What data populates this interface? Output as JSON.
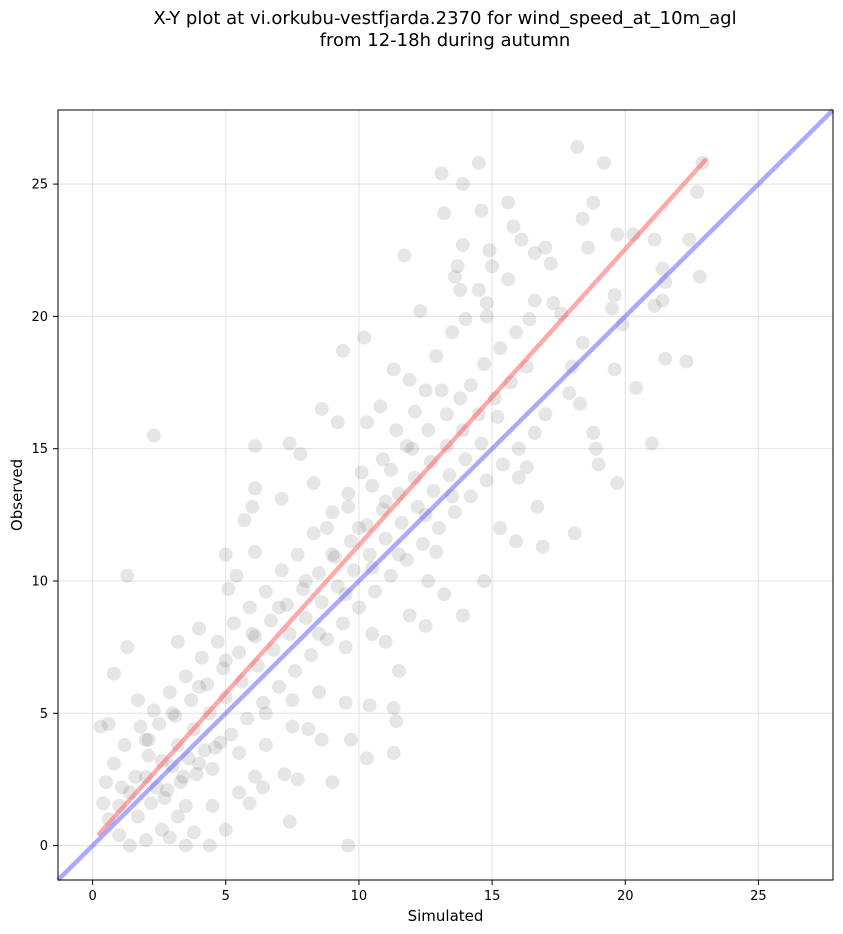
{
  "chart_data": {
    "type": "scatter",
    "title_line1": "X-Y plot at vi.orkubu-vestfjarda.2370 for wind_speed_at_10m_agl",
    "title_line2": "from 12-18h during autumn",
    "xlabel": "Simulated",
    "ylabel": "Observed",
    "xlim": [
      -1.3,
      27.8
    ],
    "ylim": [
      -1.3,
      27.8
    ],
    "xticks": [
      0,
      5,
      10,
      15,
      20,
      25
    ],
    "yticks": [
      0,
      5,
      10,
      15,
      20,
      25
    ],
    "grid": true,
    "point_color": "#404040",
    "point_opacity": 0.13,
    "regression_line": {
      "color": "#ff5555",
      "opacity": 0.5,
      "x": [
        0.25,
        23.0
      ],
      "y": [
        0.45,
        25.9
      ]
    },
    "identity_line": {
      "color": "#5555ff",
      "opacity": 0.5,
      "x": [
        -1.3,
        27.8
      ],
      "y": [
        -1.3,
        27.8
      ]
    },
    "points": [
      [
        22.9,
        25.8
      ],
      [
        18.2,
        26.4
      ],
      [
        14.5,
        25.8
      ],
      [
        13.9,
        25.0
      ],
      [
        13.1,
        25.4
      ],
      [
        19.2,
        25.8
      ],
      [
        22.7,
        24.7
      ],
      [
        18.8,
        24.3
      ],
      [
        15.6,
        24.3
      ],
      [
        14.6,
        24.0
      ],
      [
        13.2,
        23.9
      ],
      [
        19.7,
        23.1
      ],
      [
        18.4,
        23.7
      ],
      [
        20.3,
        23.1
      ],
      [
        22.4,
        22.9
      ],
      [
        21.1,
        22.9
      ],
      [
        16.6,
        22.4
      ],
      [
        17.2,
        22.0
      ],
      [
        15.8,
        23.4
      ],
      [
        16.1,
        22.9
      ],
      [
        17.0,
        22.6
      ],
      [
        11.7,
        22.3
      ],
      [
        14.9,
        22.5
      ],
      [
        15.0,
        21.9
      ],
      [
        15.6,
        21.4
      ],
      [
        13.9,
        22.7
      ],
      [
        13.7,
        21.9
      ],
      [
        13.6,
        21.5
      ],
      [
        14.5,
        21.0
      ],
      [
        21.4,
        21.8
      ],
      [
        21.5,
        21.3
      ],
      [
        22.8,
        21.5
      ],
      [
        18.6,
        22.6
      ],
      [
        13.8,
        21.0
      ],
      [
        14.8,
        20.5
      ],
      [
        16.6,
        20.6
      ],
      [
        17.3,
        20.5
      ],
      [
        17.6,
        20.1
      ],
      [
        19.6,
        20.8
      ],
      [
        19.5,
        20.3
      ],
      [
        21.4,
        20.6
      ],
      [
        21.1,
        20.4
      ],
      [
        19.9,
        19.7
      ],
      [
        18.4,
        19.0
      ],
      [
        18.0,
        18.1
      ],
      [
        17.9,
        17.1
      ],
      [
        19.6,
        18.0
      ],
      [
        20.4,
        17.3
      ],
      [
        21.5,
        18.4
      ],
      [
        22.3,
        18.3
      ],
      [
        18.3,
        16.7
      ],
      [
        18.8,
        15.6
      ],
      [
        18.9,
        15.0
      ],
      [
        19.0,
        14.4
      ],
      [
        19.7,
        13.7
      ],
      [
        21.0,
        15.2
      ],
      [
        17.0,
        16.3
      ],
      [
        16.3,
        14.3
      ],
      [
        16.0,
        13.9
      ],
      [
        16.7,
        12.8
      ],
      [
        18.1,
        11.8
      ],
      [
        16.9,
        11.3
      ],
      [
        15.9,
        11.5
      ],
      [
        15.3,
        12.0
      ],
      [
        14.7,
        10.0
      ],
      [
        13.9,
        8.7
      ],
      [
        13.2,
        9.5
      ],
      [
        12.6,
        10.0
      ],
      [
        12.9,
        11.1
      ],
      [
        12.5,
        8.3
      ],
      [
        11.9,
        8.7
      ],
      [
        11.0,
        7.7
      ],
      [
        11.5,
        6.6
      ],
      [
        11.3,
        5.2
      ],
      [
        10.4,
        5.3
      ],
      [
        11.4,
        4.7
      ],
      [
        11.3,
        3.5
      ],
      [
        10.3,
        3.3
      ],
      [
        9.7,
        4.0
      ],
      [
        9.5,
        5.4
      ],
      [
        8.6,
        4.0
      ],
      [
        8.1,
        4.4
      ],
      [
        7.2,
        2.7
      ],
      [
        6.1,
        2.6
      ],
      [
        5.9,
        1.6
      ],
      [
        6.4,
        2.2
      ],
      [
        7.7,
        2.5
      ],
      [
        7.4,
        0.9
      ],
      [
        9.0,
        2.4
      ],
      [
        9.6,
        0.0
      ],
      [
        2.3,
        15.5
      ],
      [
        1.3,
        10.2
      ],
      [
        1.3,
        7.5
      ],
      [
        0.8,
        6.5
      ],
      [
        0.3,
        4.5
      ],
      [
        0.6,
        4.6
      ],
      [
        1.7,
        5.5
      ],
      [
        2.1,
        4.0
      ],
      [
        3.2,
        7.7
      ],
      [
        4.0,
        8.2
      ],
      [
        5.1,
        9.7
      ],
      [
        5.4,
        10.2
      ],
      [
        5.0,
        11.0
      ],
      [
        6.1,
        11.1
      ],
      [
        5.7,
        12.3
      ],
      [
        6.0,
        12.8
      ],
      [
        6.1,
        13.5
      ],
      [
        7.1,
        13.1
      ],
      [
        6.1,
        15.1
      ],
      [
        7.4,
        15.2
      ],
      [
        9.4,
        18.7
      ],
      [
        10.2,
        19.2
      ],
      [
        11.3,
        18.0
      ],
      [
        11.9,
        17.6
      ],
      [
        12.5,
        17.2
      ],
      [
        12.3,
        20.2
      ],
      [
        10.8,
        16.6
      ],
      [
        10.3,
        16.0
      ],
      [
        9.2,
        16.0
      ],
      [
        8.6,
        16.5
      ],
      [
        7.8,
        14.8
      ],
      [
        8.3,
        13.7
      ],
      [
        8.8,
        12.0
      ],
      [
        9.6,
        12.8
      ],
      [
        10.5,
        13.6
      ],
      [
        11.2,
        14.2
      ],
      [
        11.8,
        15.1
      ],
      [
        12.6,
        15.7
      ],
      [
        13.3,
        16.3
      ],
      [
        13.8,
        16.9
      ],
      [
        14.2,
        17.4
      ],
      [
        14.7,
        18.2
      ],
      [
        15.3,
        18.8
      ],
      [
        15.9,
        19.4
      ],
      [
        16.4,
        19.9
      ],
      [
        12.9,
        18.5
      ],
      [
        13.5,
        19.4
      ],
      [
        14.0,
        19.9
      ],
      [
        14.8,
        20.0
      ],
      [
        13.1,
        17.2
      ],
      [
        12.1,
        16.4
      ],
      [
        11.4,
        15.7
      ],
      [
        10.9,
        14.6
      ],
      [
        10.1,
        14.1
      ],
      [
        9.6,
        13.3
      ],
      [
        9.0,
        12.6
      ],
      [
        8.3,
        11.8
      ],
      [
        7.7,
        11.0
      ],
      [
        7.1,
        10.4
      ],
      [
        6.5,
        9.6
      ],
      [
        5.9,
        9.0
      ],
      [
        5.3,
        8.4
      ],
      [
        4.7,
        7.7
      ],
      [
        4.1,
        7.1
      ],
      [
        3.5,
        6.4
      ],
      [
        2.9,
        5.8
      ],
      [
        2.3,
        5.1
      ],
      [
        1.8,
        4.5
      ],
      [
        1.2,
        3.8
      ],
      [
        0.8,
        3.1
      ],
      [
        0.5,
        2.4
      ],
      [
        0.4,
        1.6
      ],
      [
        0.6,
        1.0
      ],
      [
        1.0,
        0.4
      ],
      [
        1.4,
        0.0
      ],
      [
        2.0,
        0.2
      ],
      [
        2.6,
        0.6
      ],
      [
        3.2,
        1.1
      ],
      [
        3.8,
        0.5
      ],
      [
        4.4,
        0.0
      ],
      [
        5.0,
        0.6
      ],
      [
        3.5,
        0.0
      ],
      [
        2.9,
        0.3
      ],
      [
        1.7,
        1.1
      ],
      [
        2.2,
        1.6
      ],
      [
        2.8,
        2.1
      ],
      [
        3.4,
        2.6
      ],
      [
        4.0,
        3.1
      ],
      [
        4.6,
        3.7
      ],
      [
        5.2,
        4.2
      ],
      [
        5.8,
        4.8
      ],
      [
        6.4,
        5.4
      ],
      [
        7.0,
        6.0
      ],
      [
        7.6,
        6.6
      ],
      [
        8.2,
        7.2
      ],
      [
        8.8,
        7.8
      ],
      [
        9.4,
        8.4
      ],
      [
        10.0,
        9.0
      ],
      [
        10.6,
        9.6
      ],
      [
        11.2,
        10.2
      ],
      [
        11.8,
        10.8
      ],
      [
        12.4,
        11.4
      ],
      [
        13.0,
        12.0
      ],
      [
        13.6,
        12.6
      ],
      [
        14.2,
        13.2
      ],
      [
        14.8,
        13.8
      ],
      [
        15.4,
        14.4
      ],
      [
        16.0,
        15.0
      ],
      [
        16.6,
        15.6
      ],
      [
        15.2,
        16.2
      ],
      [
        14.6,
        15.2
      ],
      [
        14.0,
        14.6
      ],
      [
        13.4,
        14.0
      ],
      [
        12.8,
        13.4
      ],
      [
        12.2,
        12.8
      ],
      [
        11.6,
        12.2
      ],
      [
        11.0,
        11.6
      ],
      [
        10.4,
        11.0
      ],
      [
        9.8,
        10.4
      ],
      [
        9.2,
        9.8
      ],
      [
        8.6,
        9.2
      ],
      [
        8.0,
        8.6
      ],
      [
        7.4,
        8.0
      ],
      [
        6.8,
        7.4
      ],
      [
        6.2,
        6.8
      ],
      [
        5.6,
        6.2
      ],
      [
        5.0,
        5.6
      ],
      [
        4.4,
        5.0
      ],
      [
        3.8,
        4.4
      ],
      [
        3.2,
        3.8
      ],
      [
        2.6,
        3.2
      ],
      [
        2.0,
        2.6
      ],
      [
        1.4,
        2.0
      ],
      [
        1.0,
        1.5
      ],
      [
        3.0,
        3.0
      ],
      [
        3.3,
        2.4
      ],
      [
        3.6,
        3.3
      ],
      [
        3.9,
        2.7
      ],
      [
        4.2,
        3.6
      ],
      [
        4.5,
        2.9
      ],
      [
        4.8,
        3.9
      ],
      [
        2.4,
        2.2
      ],
      [
        2.7,
        1.8
      ],
      [
        1.6,
        2.6
      ],
      [
        1.1,
        2.2
      ],
      [
        2.1,
        3.4
      ],
      [
        2.5,
        4.6
      ],
      [
        3.1,
        4.9
      ],
      [
        3.7,
        5.5
      ],
      [
        4.3,
        6.1
      ],
      [
        4.9,
        6.7
      ],
      [
        5.5,
        7.3
      ],
      [
        6.1,
        7.9
      ],
      [
        6.7,
        8.5
      ],
      [
        7.3,
        9.1
      ],
      [
        7.9,
        9.7
      ],
      [
        8.5,
        10.3
      ],
      [
        9.1,
        10.9
      ],
      [
        9.7,
        11.5
      ],
      [
        10.3,
        12.1
      ],
      [
        10.9,
        12.7
      ],
      [
        11.5,
        13.3
      ],
      [
        12.1,
        13.9
      ],
      [
        12.7,
        14.5
      ],
      [
        13.3,
        15.1
      ],
      [
        13.9,
        15.7
      ],
      [
        14.5,
        16.3
      ],
      [
        15.1,
        16.9
      ],
      [
        15.7,
        17.5
      ],
      [
        16.3,
        18.1
      ],
      [
        12.0,
        15.0
      ],
      [
        11.0,
        13.0
      ],
      [
        10.0,
        12.0
      ],
      [
        9.0,
        11.0
      ],
      [
        8.0,
        10.0
      ],
      [
        7.0,
        9.0
      ],
      [
        6.0,
        8.0
      ],
      [
        5.0,
        7.0
      ],
      [
        4.0,
        6.0
      ],
      [
        3.0,
        5.0
      ],
      [
        2.0,
        4.0
      ],
      [
        8.5,
        8.0
      ],
      [
        9.5,
        7.5
      ],
      [
        10.5,
        8.0
      ],
      [
        6.5,
        5.0
      ],
      [
        7.5,
        5.5
      ],
      [
        8.5,
        5.8
      ],
      [
        5.5,
        3.5
      ],
      [
        6.5,
        3.8
      ],
      [
        7.5,
        4.5
      ],
      [
        4.5,
        1.5
      ],
      [
        5.5,
        2.0
      ],
      [
        3.5,
        1.5
      ],
      [
        12.5,
        12.5
      ],
      [
        13.5,
        13.2
      ],
      [
        11.5,
        11.0
      ],
      [
        10.5,
        10.5
      ],
      [
        9.5,
        9.5
      ]
    ]
  }
}
